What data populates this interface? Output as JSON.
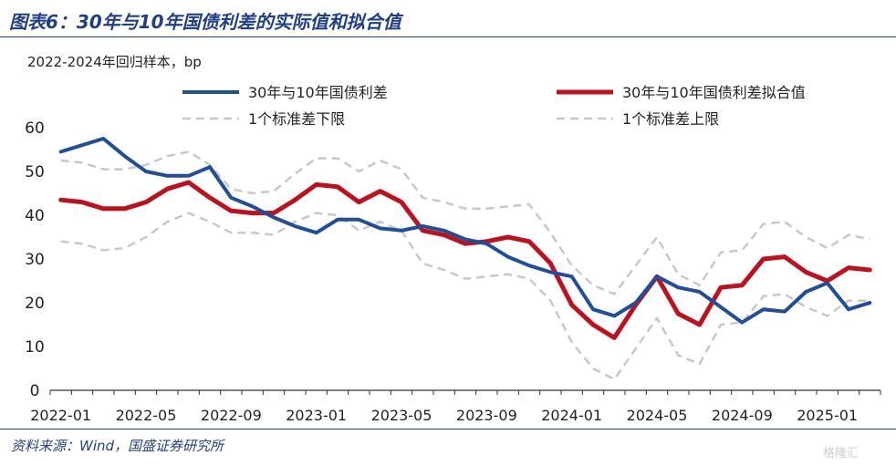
{
  "title": "图表6：30年与10年国债利差的实际值和拟合值",
  "source": "资料来源：Wind，国盛证券研究所",
  "watermark": "格隆汇",
  "chart_data": {
    "type": "line",
    "subtitle": "2022-2024年回归样本，bp",
    "ylim": [
      0,
      60
    ],
    "yticks": [
      0,
      10,
      20,
      30,
      40,
      50,
      60
    ],
    "x_tick_labels": [
      "2022-01",
      "2022-05",
      "2022-09",
      "2023-01",
      "2023-05",
      "2023-09",
      "2024-01",
      "2024-05",
      "2024-09",
      "2025-01"
    ],
    "x": [
      "2022-01",
      "2022-02",
      "2022-03",
      "2022-04",
      "2022-05",
      "2022-06",
      "2022-07",
      "2022-08",
      "2022-09",
      "2022-10",
      "2022-11",
      "2022-12",
      "2023-01",
      "2023-02",
      "2023-03",
      "2023-04",
      "2023-05",
      "2023-06",
      "2023-07",
      "2023-08",
      "2023-09",
      "2023-10",
      "2023-11",
      "2023-12",
      "2024-01",
      "2024-02",
      "2024-03",
      "2024-04",
      "2024-05",
      "2024-06",
      "2024-07",
      "2024-08",
      "2024-09",
      "2024-10",
      "2024-11",
      "2024-12",
      "2025-01",
      "2025-02",
      "2025-03"
    ],
    "legend_placement": "top",
    "series": [
      {
        "name": "30年与10年国债利差",
        "color": "#1f4e9a",
        "style": "solid",
        "width": 4,
        "values": [
          54.5,
          56,
          57.5,
          53.5,
          50,
          49,
          49,
          51,
          44,
          42,
          39.5,
          37.5,
          36,
          39,
          39,
          37,
          36.5,
          37.5,
          36.5,
          34.5,
          33.5,
          30.5,
          28.5,
          27,
          26,
          18.5,
          17,
          20,
          26,
          23.5,
          22.5,
          19,
          15.5,
          18.5,
          18,
          22.5,
          24.5,
          18.5,
          20
        ]
      },
      {
        "name": "30年与10年国债利差拟合值",
        "color": "#c0101e",
        "style": "solid",
        "width": 5,
        "values": [
          43.5,
          43,
          41.5,
          41.5,
          43,
          46,
          47.5,
          44,
          41,
          40.5,
          40.5,
          43.5,
          47,
          46.5,
          43,
          45.5,
          43,
          36.5,
          35.5,
          33.5,
          34,
          35,
          34,
          29,
          19.5,
          15,
          12,
          19.5,
          26,
          17.5,
          15,
          23.5,
          24,
          30,
          30.5,
          27,
          25,
          28,
          27.5
        ]
      },
      {
        "name": "1个标准差下限",
        "color": "#c8c8c8",
        "style": "dashed",
        "width": 2.5,
        "values": [
          34,
          33.5,
          32,
          32.5,
          35,
          38.5,
          40.5,
          38.5,
          36,
          36,
          35.5,
          38.5,
          40.5,
          40,
          36.5,
          38.5,
          36.5,
          29,
          27.5,
          25.5,
          26,
          26.5,
          25.5,
          20.5,
          11,
          5,
          2.5,
          9.5,
          16.5,
          8,
          6,
          15,
          15.5,
          21.5,
          22,
          19,
          17,
          20.5,
          20.5
        ]
      },
      {
        "name": "1个标准差上限",
        "color": "#c8c8c8",
        "style": "dashed",
        "width": 2.5,
        "values": [
          52.5,
          52,
          50.5,
          50.5,
          51.5,
          53.5,
          54.5,
          51.5,
          46,
          45,
          45.5,
          49.5,
          53,
          53,
          50,
          52.5,
          50.5,
          44,
          43,
          41.5,
          41.5,
          42,
          42.5,
          36,
          28.5,
          24,
          22,
          28.5,
          35,
          26.5,
          24,
          31.5,
          32,
          38,
          38.5,
          35,
          32.5,
          35.5,
          34.5
        ]
      }
    ]
  }
}
